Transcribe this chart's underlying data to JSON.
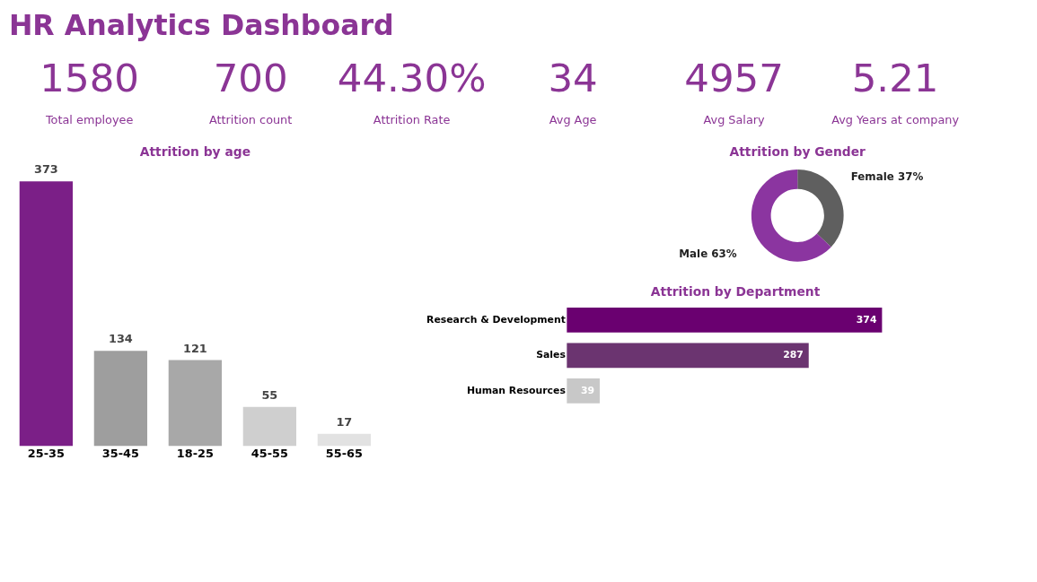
{
  "chart_data": [
    {
      "type": "other",
      "title": "HR Analytics Dashboard",
      "annotations": [
        "1580",
        "Total employee",
        "700",
        "Attrition count",
        "44.30%",
        "Attrition Rate",
        "34",
        "Avg Age",
        "4957",
        "Avg Salary",
        "5.21",
        "Avg Years at company"
      ]
    },
    {
      "type": "bar",
      "title": "Attrition by age",
      "categories": [
        "25-35",
        "35-45",
        "18-25",
        "45-55",
        "55-65"
      ],
      "values": [
        373,
        134,
        121,
        55,
        17
      ],
      "colors": [
        "#7b1f87",
        "#9e9e9e",
        "#a8a8a8",
        "#cfcfcf",
        "#e2e2e2"
      ],
      "data_labels": true
    },
    {
      "type": "donut",
      "title": "Attrition by Gender",
      "categories": [
        "Female",
        "Male"
      ],
      "values": [
        37,
        63
      ],
      "colors": [
        "#5f5f5f",
        "#8b35a0"
      ],
      "value_labels": [
        "37%",
        "63%"
      ]
    },
    {
      "type": "bar",
      "orientation": "horizontal",
      "title": "Attrition by Department",
      "categories": [
        "Research & Development",
        "Sales",
        "Human Resources"
      ],
      "values": [
        374,
        287,
        39
      ],
      "colors": [
        "#6a0070",
        "#6b3470",
        "#c8c8c8"
      ],
      "data_labels": true
    }
  ]
}
